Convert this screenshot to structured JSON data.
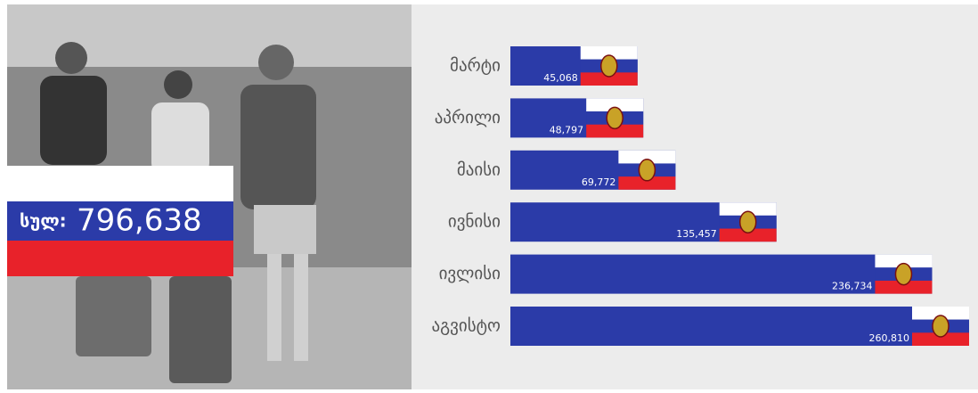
{
  "chart_data": {
    "type": "bar",
    "orientation": "horizontal",
    "categories": [
      "მარტი",
      "აპრილი",
      "მაისი",
      "ივნისი",
      "ივლისი",
      "აგვისტო"
    ],
    "values": [
      45068,
      48797,
      69772,
      135457,
      236734,
      260810
    ],
    "value_labels": [
      "45,068",
      "48,797",
      "69,772",
      "135,457",
      "236,734",
      "260,810"
    ],
    "color": "#2b3ba8",
    "total": {
      "name": "სულ:",
      "value": 796638,
      "value_label": "796,638"
    }
  }
}
